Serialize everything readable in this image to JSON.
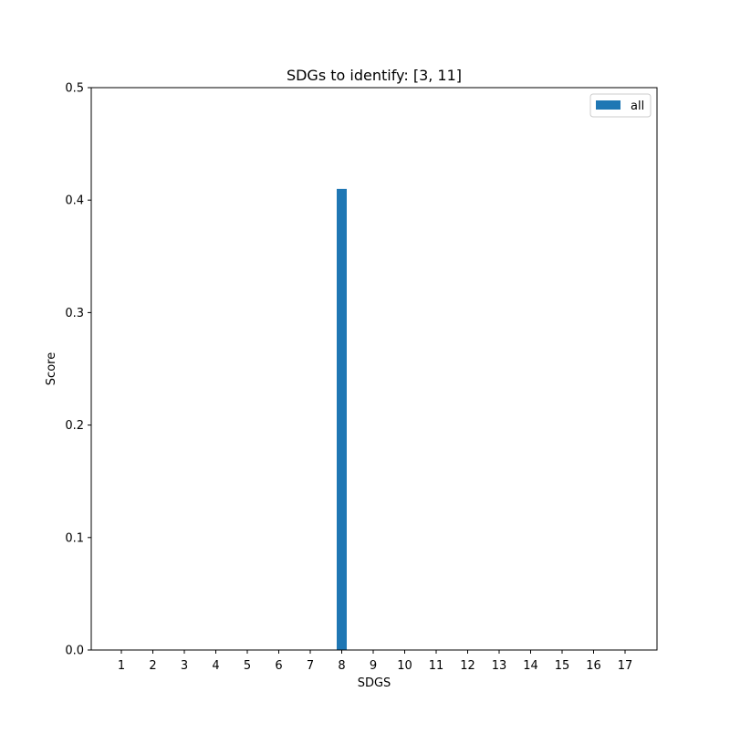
{
  "chart_data": {
    "type": "bar",
    "title": "SDGs to identify: [3, 11]",
    "xlabel": "SDGS",
    "ylabel": "Score",
    "categories": [
      "1",
      "2",
      "3",
      "4",
      "5",
      "6",
      "7",
      "8",
      "9",
      "10",
      "11",
      "12",
      "13",
      "14",
      "15",
      "16",
      "17"
    ],
    "series": [
      {
        "name": "all",
        "color": "#1f77b4",
        "values": [
          0,
          0,
          0,
          0,
          0,
          0,
          0,
          0.41,
          0,
          0,
          0,
          0,
          0,
          0,
          0,
          0,
          0
        ]
      }
    ],
    "ylim": [
      0,
      0.5
    ],
    "yticks": [
      "0.0",
      "0.1",
      "0.2",
      "0.3",
      "0.4",
      "0.5"
    ],
    "grid": false,
    "legend_position": "top-right"
  }
}
